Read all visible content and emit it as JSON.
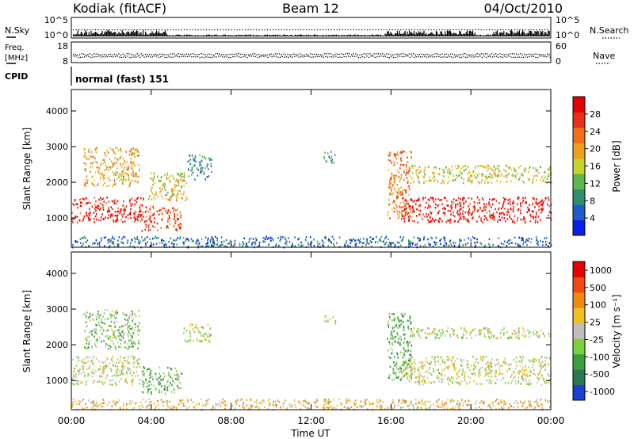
{
  "header": {
    "station": "Kodiak (fitACF)",
    "beam": "Beam 12",
    "date": "04/Oct/2010"
  },
  "noise_panel": {
    "left_label": "N.Sky",
    "right_label": "N.Search",
    "left_ticks": [
      "10^5",
      "10^0"
    ],
    "right_ticks": [
      "10^5",
      "10^0"
    ]
  },
  "freq_panel": {
    "left_label_1": "Freq.",
    "left_label_2": "[MHz]",
    "right_label": "Nave",
    "left_ticks": [
      "18",
      "8"
    ],
    "right_ticks": [
      "60",
      "0"
    ]
  },
  "cpid": {
    "label": "CPID",
    "mode": "normal (fast) 151"
  },
  "x_axis": {
    "label": "Time UT",
    "ticks": [
      "00:00",
      "04:00",
      "08:00",
      "12:00",
      "16:00",
      "20:00",
      "00:00"
    ]
  },
  "chart_data": [
    {
      "type": "heatmap",
      "ylabel": "Slant Range [km]",
      "xlabel": "Time UT",
      "xlim_hours": [
        0,
        24
      ],
      "ylim_km": [
        180,
        4600
      ],
      "yticks": [
        "1000",
        "2000",
        "3000",
        "4000"
      ],
      "colorbar": {
        "label": "Power [dB]",
        "ticks": [
          "4",
          "8",
          "12",
          "16",
          "20",
          "24",
          "28"
        ],
        "range": [
          0,
          32
        ],
        "colors": [
          "#0a1fe6",
          "#1f5cc8",
          "#2e8f6e",
          "#5cb84a",
          "#c8d22a",
          "#f0a020",
          "#f07018",
          "#e63018",
          "#e60000"
        ]
      },
      "regions": [
        {
          "t0": 0.0,
          "t1": 3.6,
          "r0": 900,
          "r1": 1600,
          "level": 0.92
        },
        {
          "t0": 0.6,
          "t1": 3.4,
          "r0": 1900,
          "r1": 3000,
          "level": 0.6
        },
        {
          "t0": 3.5,
          "t1": 5.5,
          "r0": 650,
          "r1": 1350,
          "level": 0.78
        },
        {
          "t0": 3.8,
          "t1": 5.8,
          "r0": 1500,
          "r1": 2300,
          "level": 0.55
        },
        {
          "t0": 5.8,
          "t1": 7.0,
          "r0": 2100,
          "r1": 2800,
          "level": 0.28
        },
        {
          "t0": 12.6,
          "t1": 13.2,
          "r0": 2550,
          "r1": 2900,
          "level": 0.25
        },
        {
          "t0": 15.8,
          "t1": 17.0,
          "r0": 1000,
          "r1": 2900,
          "level": 0.7
        },
        {
          "t0": 16.5,
          "t1": 24.0,
          "r0": 900,
          "r1": 1600,
          "level": 0.92
        },
        {
          "t0": 17.0,
          "t1": 24.0,
          "r0": 2000,
          "r1": 2500,
          "level": 0.5
        },
        {
          "t0": 0.0,
          "t1": 24.0,
          "r0": 200,
          "r1": 500,
          "level": 0.2
        }
      ]
    },
    {
      "type": "heatmap",
      "ylabel": "Slant Range [km]",
      "xlabel": "Time UT",
      "xlim_hours": [
        0,
        24
      ],
      "ylim_km": [
        180,
        4600
      ],
      "yticks": [
        "1000",
        "2000",
        "3000",
        "4000"
      ],
      "colorbar": {
        "label": "Velocity [m s⁻¹]",
        "ticks": [
          "1000",
          "500",
          "100",
          "25",
          "-25",
          "-100",
          "-500",
          "-1000"
        ],
        "colors": [
          "#1f3fd2",
          "#2a7a50",
          "#3aa040",
          "#7cd23a",
          "#bebebe",
          "#f0c020",
          "#f08a10",
          "#f04a10",
          "#e60000"
        ]
      },
      "regions": [
        {
          "t0": 0.0,
          "t1": 3.4,
          "r0": 900,
          "r1": 1700,
          "level": 0.5
        },
        {
          "t0": 0.6,
          "t1": 3.4,
          "r0": 1900,
          "r1": 3000,
          "level": 0.4
        },
        {
          "t0": 3.5,
          "t1": 5.5,
          "r0": 650,
          "r1": 1400,
          "level": 0.35
        },
        {
          "t0": 5.6,
          "t1": 7.0,
          "r0": 2100,
          "r1": 2600,
          "level": 0.5
        },
        {
          "t0": 12.6,
          "t1": 13.2,
          "r0": 2600,
          "r1": 2850,
          "level": 0.5
        },
        {
          "t0": 15.8,
          "t1": 17.0,
          "r0": 1000,
          "r1": 2900,
          "level": 0.3
        },
        {
          "t0": 16.5,
          "t1": 24.0,
          "r0": 900,
          "r1": 1700,
          "level": 0.5
        },
        {
          "t0": 17.0,
          "t1": 24.0,
          "r0": 2200,
          "r1": 2500,
          "level": 0.5
        },
        {
          "t0": 0.0,
          "t1": 24.0,
          "r0": 200,
          "r1": 500,
          "level": 0.6
        }
      ]
    }
  ]
}
